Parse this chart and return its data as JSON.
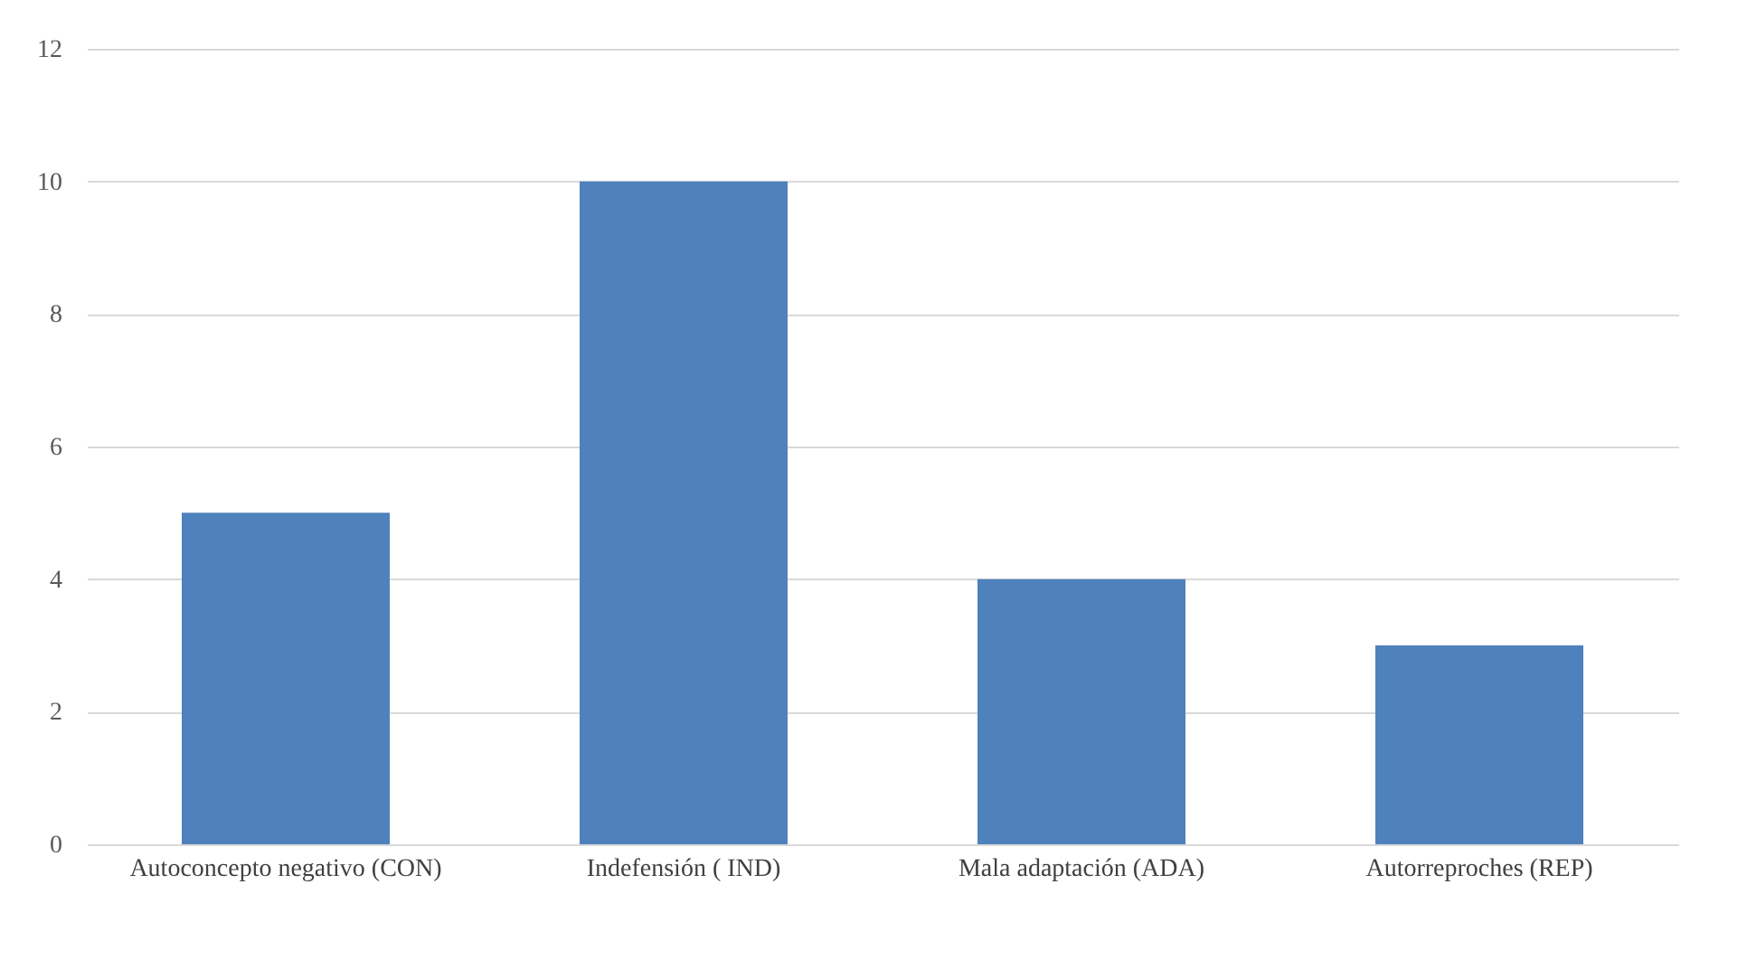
{
  "chart_data": {
    "type": "bar",
    "categories": [
      "Autoconcepto negativo (CON)",
      "Indefensión ( IND)",
      "Mala adaptación (ADA)",
      "Autorreproches (REP)"
    ],
    "values": [
      5,
      10,
      4,
      3
    ],
    "color": "#4f81bd",
    "ylim": [
      0,
      12
    ],
    "yticks": [
      0,
      2,
      4,
      6,
      8,
      10,
      12
    ],
    "grid": "y"
  }
}
